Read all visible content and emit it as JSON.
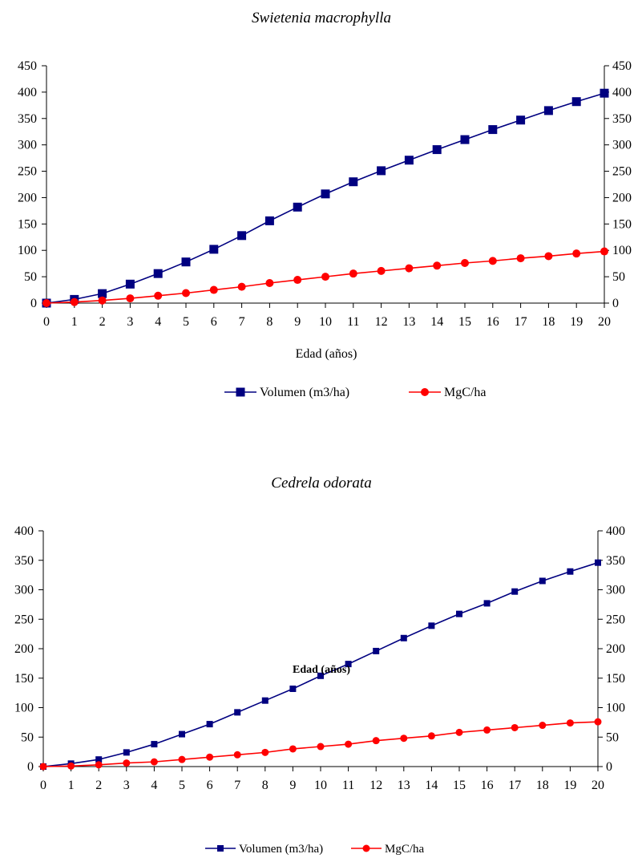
{
  "chart_data": [
    {
      "type": "line",
      "title": "Swietenia macrophylla",
      "xlabel": "Edad (años)",
      "ylabel": "",
      "x": [
        0,
        1,
        2,
        3,
        4,
        5,
        6,
        7,
        8,
        9,
        10,
        11,
        12,
        13,
        14,
        15,
        16,
        17,
        18,
        19,
        20
      ],
      "ylim": [
        0,
        450
      ],
      "yticks": [
        0,
        50,
        100,
        150,
        200,
        250,
        300,
        350,
        400,
        450
      ],
      "y2ticks": [
        0,
        50,
        100,
        150,
        200,
        250,
        300,
        350,
        400,
        450
      ],
      "grid": false,
      "legend_position": "bottom",
      "series": [
        {
          "name": "Volumen (m3/ha)",
          "color": "#000080",
          "marker": "square",
          "values": [
            0,
            7,
            18,
            36,
            56,
            78,
            102,
            128,
            156,
            182,
            207,
            230,
            251,
            271,
            291,
            310,
            329,
            347,
            365,
            382,
            398
          ]
        },
        {
          "name": "MgC/ha",
          "color": "#ff0000",
          "marker": "circle",
          "values": [
            0,
            2,
            5,
            9,
            14,
            19,
            25,
            31,
            38,
            44,
            50,
            56,
            61,
            66,
            71,
            76,
            80,
            85,
            89,
            94,
            98
          ]
        }
      ]
    },
    {
      "type": "line",
      "title": "Cedrela odorata",
      "xlabel": "Edad (años)",
      "ylabel": "",
      "x": [
        0,
        1,
        2,
        3,
        4,
        5,
        6,
        7,
        8,
        9,
        10,
        11,
        12,
        13,
        14,
        15,
        16,
        17,
        18,
        19,
        20
      ],
      "ylim": [
        0,
        400
      ],
      "yticks": [
        0,
        50,
        100,
        150,
        200,
        250,
        300,
        350,
        400
      ],
      "y2ticks": [
        0,
        50,
        100,
        150,
        200,
        250,
        300,
        350,
        400
      ],
      "grid": false,
      "legend_position": "bottom",
      "series": [
        {
          "name": "Volumen (m3/ha)",
          "color": "#000080",
          "marker": "square",
          "values": [
            0,
            5,
            12,
            24,
            38,
            55,
            72,
            92,
            112,
            132,
            154,
            174,
            196,
            218,
            239,
            259,
            277,
            297,
            315,
            331,
            346
          ]
        },
        {
          "name": "MgC/ha",
          "color": "#ff0000",
          "marker": "circle",
          "values": [
            0,
            1,
            3,
            6,
            8,
            12,
            16,
            20,
            24,
            30,
            34,
            38,
            44,
            48,
            52,
            58,
            62,
            66,
            70,
            74,
            76
          ]
        }
      ]
    }
  ]
}
